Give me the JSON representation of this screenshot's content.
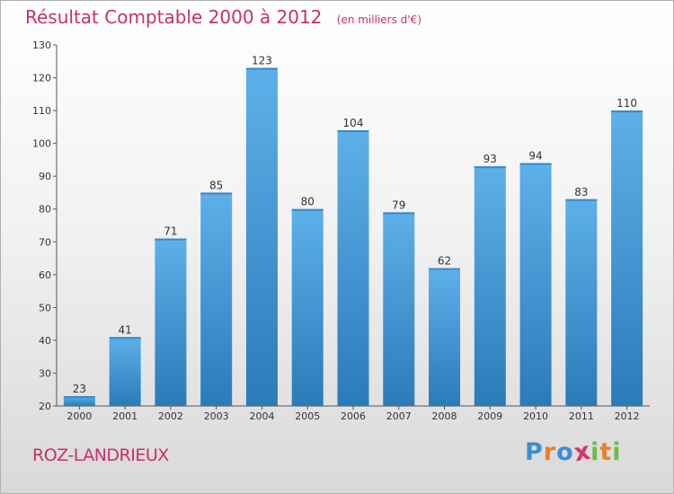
{
  "chart_data": {
    "type": "bar",
    "title": "Résultat Comptable 2000 à 2012",
    "unit_label": "(en milliers d'€)",
    "categories": [
      "2000",
      "2001",
      "2002",
      "2003",
      "2004",
      "2005",
      "2006",
      "2007",
      "2008",
      "2009",
      "2010",
      "2011",
      "2012"
    ],
    "values": [
      23,
      41,
      71,
      85,
      123,
      80,
      104,
      79,
      62,
      93,
      94,
      83,
      110
    ],
    "ylim": [
      20,
      130
    ],
    "yticks": [
      20,
      30,
      40,
      50,
      60,
      70,
      80,
      90,
      100,
      110,
      120,
      130
    ],
    "xlabel": "",
    "ylabel": "",
    "grid": false
  },
  "place_name": "ROZ-LANDRIEUX",
  "logo_letters": [
    "P",
    "r",
    "o",
    "x",
    "i",
    "t",
    "i"
  ],
  "colors": {
    "bar_light": "#5eb0ea",
    "bar_dark": "#2a7bb8",
    "accent": "#c8306a",
    "logo": [
      "#3a8fd6",
      "#e8812a",
      "#3a8fd6",
      "#d8336b",
      "#6bbd45",
      "#e8812a",
      "#6bbd45"
    ]
  }
}
